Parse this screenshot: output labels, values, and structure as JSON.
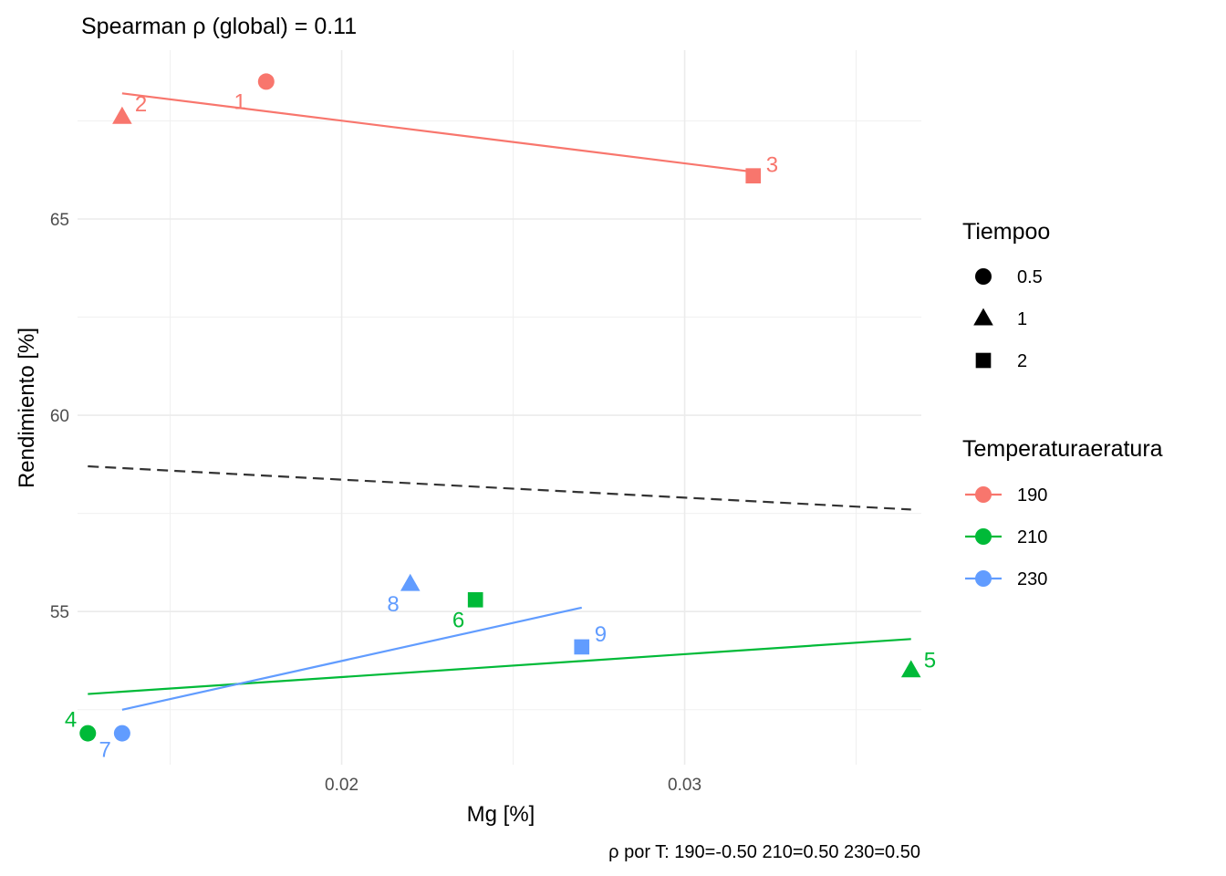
{
  "chart_data": {
    "type": "scatter",
    "title": "Spearman ρ (global) = 0.11",
    "caption": "ρ por T: 190=-0.50   210=0.50   230=0.50",
    "xlabel": "Mg [%]",
    "ylabel": "Rendimiento [%]",
    "xlim": [
      0.0123,
      0.0369
    ],
    "ylim": [
      51.1,
      69.3
    ],
    "x_ticks": [
      0.02,
      0.03
    ],
    "x_tick_labels": [
      "0.02",
      "0.03"
    ],
    "y_ticks": [
      55,
      60,
      65
    ],
    "y_tick_labels": [
      "55",
      "60",
      "65"
    ],
    "grid": true,
    "legend_position": "right",
    "colors": {
      "190": "#F8766D",
      "210": "#00BA38",
      "230": "#619CFF",
      "global_fit": "#333333"
    },
    "legends": {
      "shape": {
        "title": "Tiempoo",
        "items": [
          {
            "label": "0.5",
            "shape": "circle"
          },
          {
            "label": "1",
            "shape": "triangle"
          },
          {
            "label": "2",
            "shape": "square"
          }
        ]
      },
      "color": {
        "title": "Temperaturaeratura",
        "items": [
          {
            "label": "190",
            "color": "#F8766D"
          },
          {
            "label": "210",
            "color": "#00BA38"
          },
          {
            "label": "230",
            "color": "#619CFF"
          }
        ]
      }
    },
    "points": [
      {
        "label": "1",
        "x": 0.0178,
        "y": 68.5,
        "group": "190",
        "tiempo": "0.5"
      },
      {
        "label": "2",
        "x": 0.0136,
        "y": 67.6,
        "group": "190",
        "tiempo": "1"
      },
      {
        "label": "3",
        "x": 0.032,
        "y": 66.1,
        "group": "190",
        "tiempo": "2"
      },
      {
        "label": "4",
        "x": 0.0126,
        "y": 51.9,
        "group": "210",
        "tiempo": "0.5"
      },
      {
        "label": "5",
        "x": 0.0366,
        "y": 53.5,
        "group": "210",
        "tiempo": "1"
      },
      {
        "label": "6",
        "x": 0.0239,
        "y": 55.3,
        "group": "210",
        "tiempo": "2"
      },
      {
        "label": "7",
        "x": 0.0136,
        "y": 51.9,
        "group": "230",
        "tiempo": "0.5"
      },
      {
        "label": "8",
        "x": 0.022,
        "y": 55.7,
        "group": "230",
        "tiempo": "1"
      },
      {
        "label": "9",
        "x": 0.027,
        "y": 54.1,
        "group": "230",
        "tiempo": "2"
      }
    ],
    "fit_lines": [
      {
        "group": "190",
        "x": [
          0.0136,
          0.032
        ],
        "y": [
          68.2,
          66.2
        ]
      },
      {
        "group": "210",
        "x": [
          0.0126,
          0.0366
        ],
        "y": [
          52.9,
          54.3
        ]
      },
      {
        "group": "230",
        "x": [
          0.0136,
          0.027
        ],
        "y": [
          52.5,
          55.1
        ]
      },
      {
        "group": "global",
        "dashed": true,
        "x": [
          0.0126,
          0.0366
        ],
        "y": [
          58.7,
          57.6
        ]
      }
    ]
  }
}
